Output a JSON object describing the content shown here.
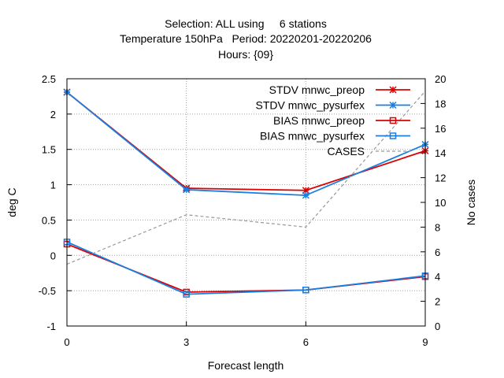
{
  "chart_data": {
    "type": "line",
    "title_lines": [
      "Selection: ALL using     6 stations",
      "Temperature 150hPa   Period: 20220201-20220206",
      "Hours: {09}"
    ],
    "xlabel": "Forecast length",
    "ylabel": "deg C",
    "y2label": "No cases",
    "x": [
      0,
      3,
      6,
      9
    ],
    "xlim": [
      0,
      9
    ],
    "ylim": [
      -1,
      2.5
    ],
    "y2lim": [
      0,
      20
    ],
    "xticks": [
      0,
      3,
      6,
      9
    ],
    "yticks": [
      -1,
      -0.5,
      0,
      0.5,
      1,
      1.5,
      2,
      2.5
    ],
    "yticklabels": [
      "-1",
      "-0.5",
      "0",
      "0.5",
      "1",
      "1.5",
      "2",
      "2.5"
    ],
    "y2ticks": [
      0,
      2,
      4,
      6,
      8,
      10,
      12,
      14,
      16,
      18,
      20
    ],
    "grid": true,
    "legend_position": "top-right",
    "series": [
      {
        "name": "STDV mnwc_preop",
        "axis": "y1",
        "color": "#dd0000",
        "marker": "star",
        "values": [
          2.31,
          0.95,
          0.92,
          1.48
        ]
      },
      {
        "name": "STDV mnwc_pysurfex",
        "axis": "y1",
        "color": "#1a7fe0",
        "marker": "star",
        "values": [
          2.31,
          0.93,
          0.85,
          1.57
        ]
      },
      {
        "name": "BIAS mnwc_preop",
        "axis": "y1",
        "color": "#dd0000",
        "marker": "square",
        "values": [
          0.16,
          -0.52,
          -0.49,
          -0.3
        ]
      },
      {
        "name": "BIAS mnwc_pysurfex",
        "axis": "y1",
        "color": "#1a7fe0",
        "marker": "square",
        "values": [
          0.19,
          -0.55,
          -0.49,
          -0.29
        ]
      },
      {
        "name": "CASES",
        "axis": "y2",
        "color": "#999999",
        "marker": "none",
        "dashed": true,
        "values": [
          5,
          9,
          8,
          19
        ]
      }
    ]
  }
}
